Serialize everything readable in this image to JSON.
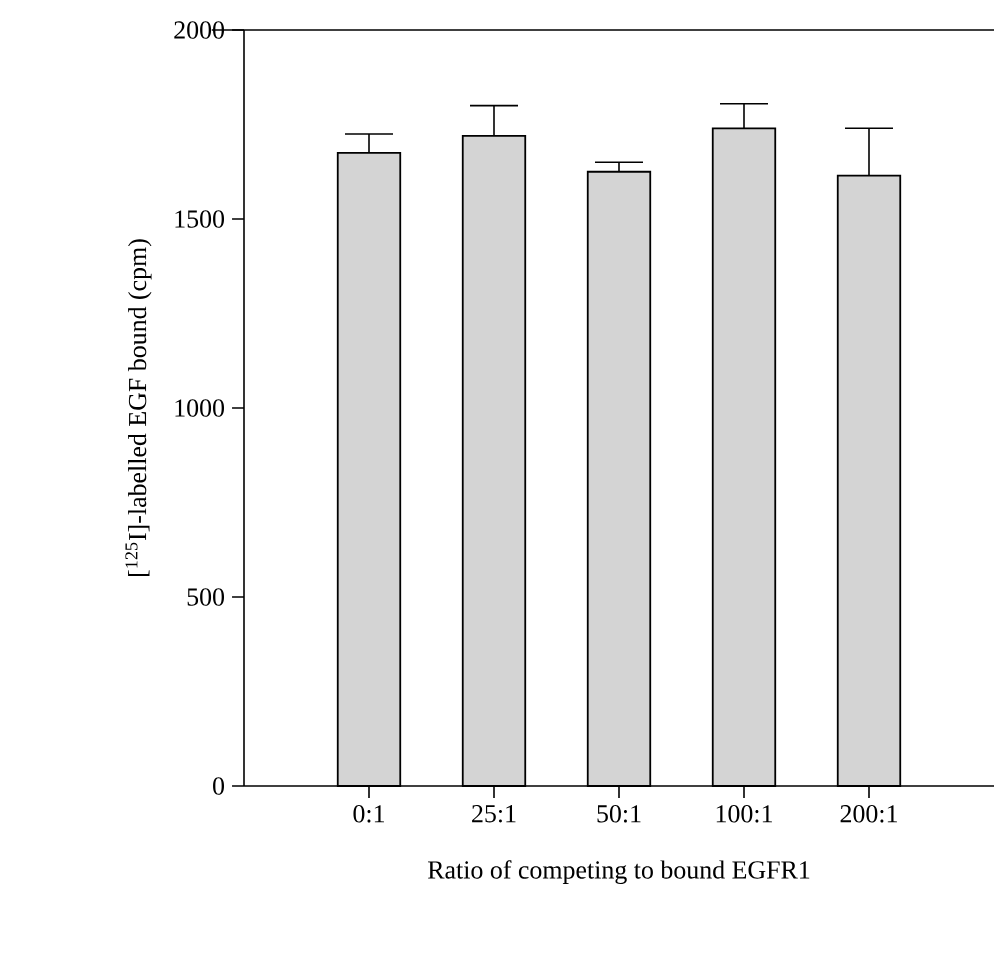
{
  "chart_data": {
    "type": "bar",
    "categories": [
      "0:1",
      "25:1",
      "50:1",
      "100:1",
      "200:1"
    ],
    "values": [
      1675,
      1720,
      1625,
      1740,
      1615
    ],
    "errors": [
      [
        1675,
        1725
      ],
      [
        1720,
        1800
      ],
      [
        1625,
        1650
      ],
      [
        1740,
        1805
      ],
      [
        1615,
        1740
      ]
    ],
    "color": "#d4d4d4",
    "xlabel": "Ratio of competing to bound EGFR1",
    "ylabel": "[$^{125}$I]-labelled EGF bound (cpm)",
    "ylim": [
      0,
      2000
    ],
    "yticks": [
      0,
      500,
      1000,
      1500,
      2000
    ],
    "grid": false
  }
}
